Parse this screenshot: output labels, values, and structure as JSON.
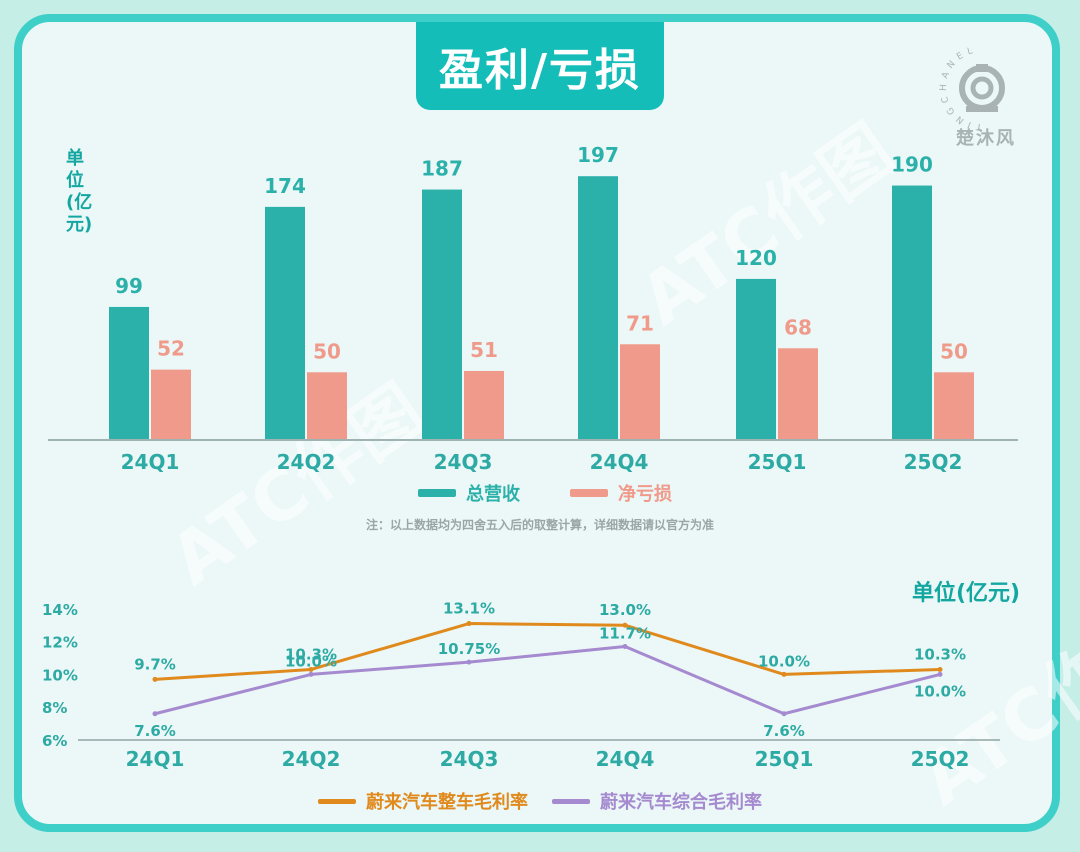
{
  "title": "盈利/亏损",
  "watermark": "ATC作图",
  "logo": {
    "ring_text": "TINGCHANEL",
    "name": "楚沐风"
  },
  "bar_unit": "单位(亿元)",
  "line_unit": "单位(亿元)",
  "note": "注：以上数据均为四舍五入后的取整计算，详细数据请以官方为准",
  "colors": {
    "revenue": "#2cb1aa",
    "loss": "#ef9a8a",
    "vehicle_margin": "#e08a1e",
    "overall_margin": "#a58ad0",
    "accent": "#14bdb8"
  },
  "chart_data": [
    {
      "type": "bar",
      "categories": [
        "24Q1",
        "24Q2",
        "24Q3",
        "24Q4",
        "25Q1",
        "25Q2"
      ],
      "series": [
        {
          "name": "总营收",
          "values": [
            99,
            174,
            187,
            197,
            120,
            190
          ]
        },
        {
          "name": "净亏损",
          "values": [
            52,
            50,
            51,
            71,
            68,
            50
          ]
        }
      ],
      "ylabel": "单位(亿元)",
      "legend": "bottom"
    },
    {
      "type": "line",
      "categories": [
        "24Q1",
        "24Q2",
        "24Q3",
        "24Q4",
        "25Q1",
        "25Q2"
      ],
      "yticks": [
        "14%",
        "12%",
        "10%",
        "8%",
        "6%"
      ],
      "ylim": [
        6,
        14
      ],
      "series": [
        {
          "name": "蔚来汽车整车毛利率",
          "values": [
            9.7,
            10.3,
            13.1,
            13.0,
            10.0,
            10.3
          ],
          "labels": [
            "9.7%",
            "10.3%",
            "13.1%",
            "13.0%",
            "10.0%",
            "10.3%"
          ]
        },
        {
          "name": "蔚来汽车综合毛利率",
          "values": [
            7.6,
            10.0,
            10.75,
            11.7,
            7.6,
            10.0
          ],
          "labels": [
            "7.6%",
            "10.0%",
            "10.75%",
            "11.7%",
            "7.6%",
            "10.0%"
          ]
        }
      ],
      "legend": "bottom"
    }
  ]
}
